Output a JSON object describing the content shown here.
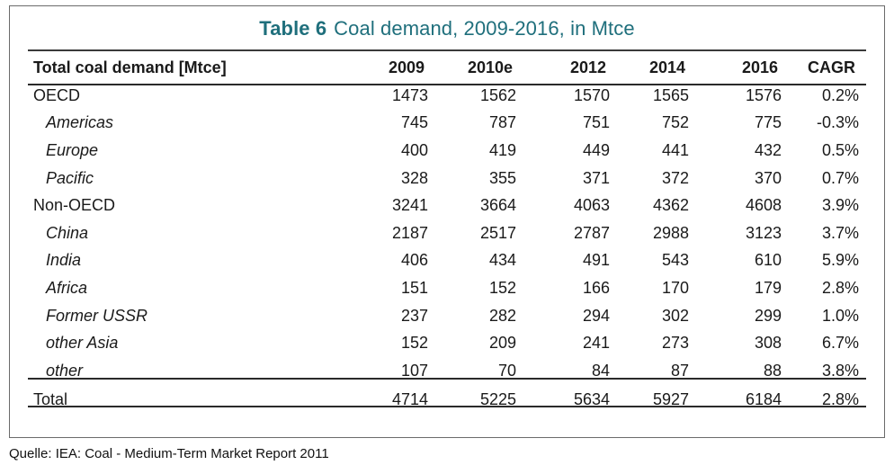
{
  "table": {
    "title_lead": "Table 6",
    "title_rest": "Coal demand, 2009-2016, in Mtce",
    "columns": [
      "Total coal demand [Mtce]",
      "2009",
      "2010e",
      "2012",
      "2014",
      "2016",
      "CAGR"
    ],
    "rows": [
      {
        "label": "OECD",
        "sub": false,
        "values": [
          "1473",
          "1562",
          "1570",
          "1565",
          "1576",
          "0.2%"
        ]
      },
      {
        "label": "Americas",
        "sub": true,
        "values": [
          "745",
          "787",
          "751",
          "752",
          "775",
          "-0.3%"
        ]
      },
      {
        "label": "Europe",
        "sub": true,
        "values": [
          "400",
          "419",
          "449",
          "441",
          "432",
          "0.5%"
        ]
      },
      {
        "label": "Pacific",
        "sub": true,
        "values": [
          "328",
          "355",
          "371",
          "372",
          "370",
          "0.7%"
        ]
      },
      {
        "label": "Non-OECD",
        "sub": false,
        "values": [
          "3241",
          "3664",
          "4063",
          "4362",
          "4608",
          "3.9%"
        ]
      },
      {
        "label": "China",
        "sub": true,
        "values": [
          "2187",
          "2517",
          "2787",
          "2988",
          "3123",
          "3.7%"
        ]
      },
      {
        "label": "India",
        "sub": true,
        "values": [
          "406",
          "434",
          "491",
          "543",
          "610",
          "5.9%"
        ]
      },
      {
        "label": "Africa",
        "sub": true,
        "values": [
          "151",
          "152",
          "166",
          "170",
          "179",
          "2.8%"
        ]
      },
      {
        "label": "Former USSR",
        "sub": true,
        "values": [
          "237",
          "282",
          "294",
          "302",
          "299",
          "1.0%"
        ]
      },
      {
        "label": "other Asia",
        "sub": true,
        "values": [
          "152",
          "209",
          "241",
          "273",
          "308",
          "6.7%"
        ]
      },
      {
        "label": "other",
        "sub": true,
        "values": [
          "107",
          "70",
          "84",
          "87",
          "88",
          "3.8%"
        ]
      }
    ],
    "total": {
      "label": "Total",
      "values": [
        "4714",
        "5225",
        "5634",
        "5927",
        "6184",
        "2.8%"
      ]
    }
  },
  "source": "Quelle: IEA: Coal - Medium-Term Market Report 2011",
  "colors": {
    "title": "#1f6f7c",
    "rules": "#2a2a2a",
    "border": "#6b6b6b"
  }
}
